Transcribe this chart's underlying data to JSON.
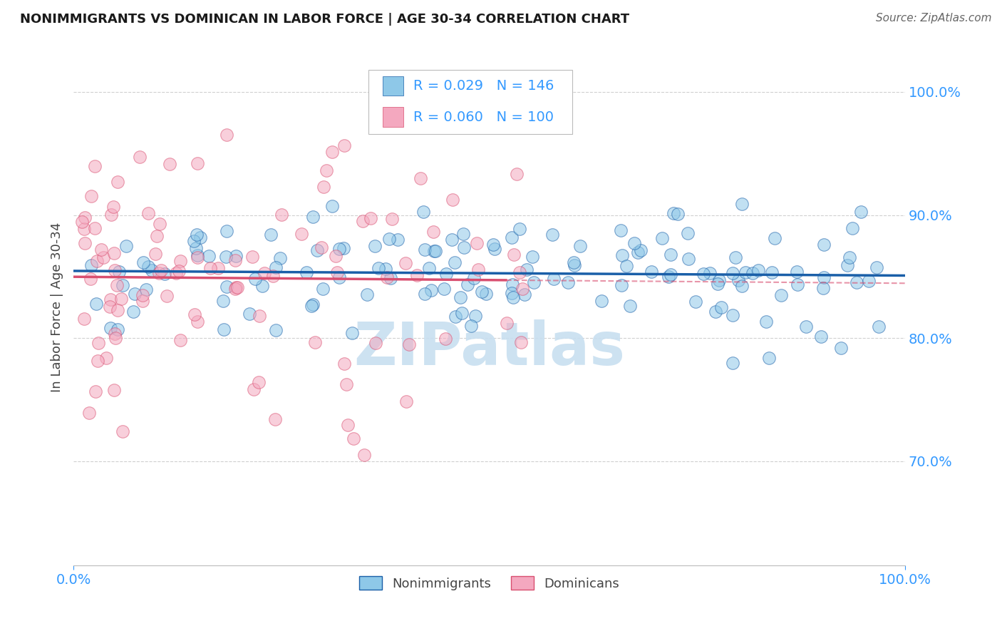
{
  "title": "NONIMMIGRANTS VS DOMINICAN IN LABOR FORCE | AGE 30-34 CORRELATION CHART",
  "source": "Source: ZipAtlas.com",
  "ylabel": "In Labor Force | Age 30-34",
  "xlim": [
    0.0,
    1.0
  ],
  "ylim": [
    0.615,
    1.035
  ],
  "yticks": [
    0.7,
    0.8,
    0.9,
    1.0
  ],
  "ytick_labels": [
    "70.0%",
    "80.0%",
    "90.0%",
    "100.0%"
  ],
  "xticks": [
    0.0,
    1.0
  ],
  "xtick_labels": [
    "0.0%",
    "100.0%"
  ],
  "R_nonimm": 0.029,
  "N_nonimm": 146,
  "R_dom": 0.06,
  "N_dom": 100,
  "blue_marker_color": "#8ec8e8",
  "pink_marker_color": "#f4a8bf",
  "blue_line_color": "#1a5fa8",
  "pink_line_color": "#d94f70",
  "watermark": "ZIPatlas",
  "watermark_color": "#c8dff0",
  "background_color": "#ffffff",
  "grid_color": "#d0d0d0"
}
